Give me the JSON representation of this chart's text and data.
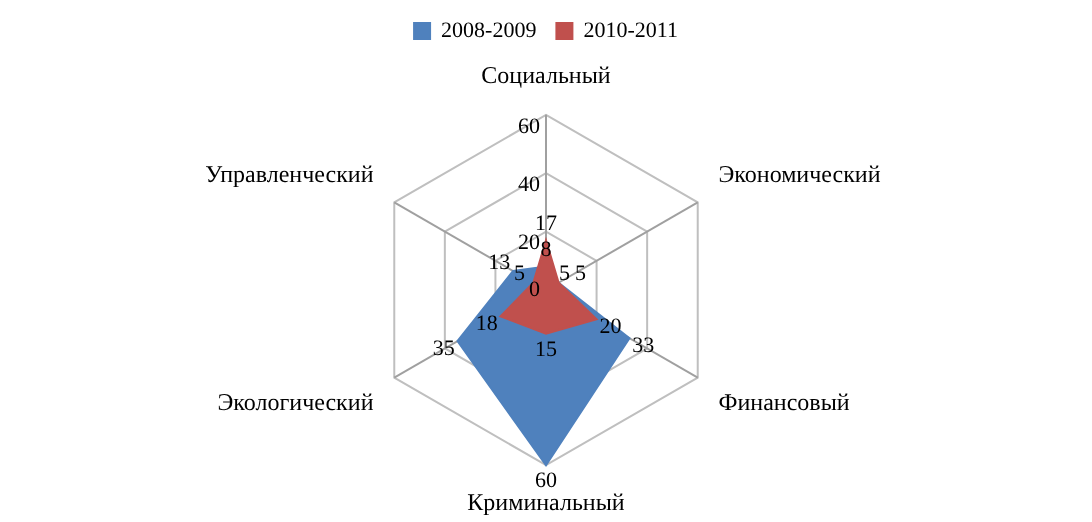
{
  "chart_data": {
    "type": "radar",
    "categories": [
      "Социальный",
      "Экономический",
      "Финансовый",
      "Криминальный",
      "Экологический",
      "Управленческий"
    ],
    "series": [
      {
        "name": "2008-2009",
        "color": "#4f81bd",
        "values": [
          8,
          5,
          33,
          60,
          35,
          13
        ]
      },
      {
        "name": "2010-2011",
        "color": "#c0504d",
        "values": [
          17,
          5,
          20,
          15,
          18,
          5
        ]
      }
    ],
    "ylim": [
      0,
      60
    ],
    "yticks": [
      0,
      20,
      40,
      60
    ],
    "grid": true,
    "legend": "top",
    "marker": "none",
    "data_labels": true
  }
}
